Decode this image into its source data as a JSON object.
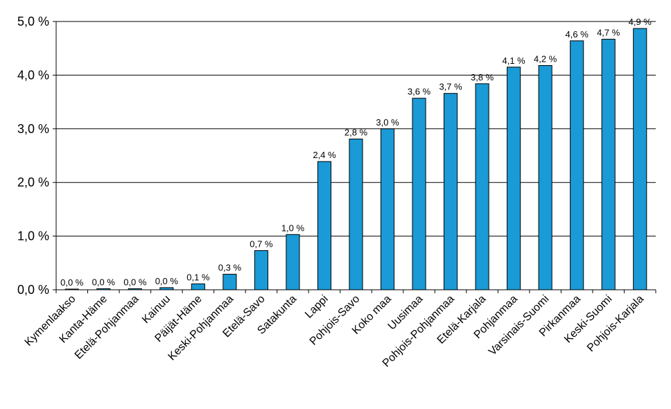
{
  "chart_data": {
    "type": "bar",
    "categories": [
      "Kymenlaakso",
      "Kanta-Häme",
      "Etelä-Pohjanmaa",
      "Kainuu",
      "Päijät-Häme",
      "Keski-Pohjanmaa",
      "Etelä-Savo",
      "Satakunta",
      "Lappi",
      "Pohjois-Savo",
      "Koko maa",
      "Uusimaa",
      "Pohjois-Pohjanmaa",
      "Etelä-Karjala",
      "Pohjanmaa",
      "Varsinais-Suomi",
      "Pirkanmaa",
      "Keski-Suomi",
      "Pohjois-Karjala"
    ],
    "values": [
      0.01,
      0.02,
      0.02,
      0.04,
      0.11,
      0.29,
      0.73,
      1.03,
      2.39,
      2.81,
      3.0,
      3.57,
      3.66,
      3.84,
      4.15,
      4.18,
      4.64,
      4.67,
      4.87
    ],
    "data_labels": [
      "0,0 %",
      "0,0 %",
      "0,0 %",
      "0,0 %",
      "0,1 %",
      "0,3 %",
      "0,7 %",
      "1,0 %",
      "2,4 %",
      "2,8 %",
      "3,0 %",
      "3,6 %",
      "3,7 %",
      "3,8 %",
      "4,1 %",
      "4,2 %",
      "4,6 %",
      "4,7 %",
      "4,9 %"
    ],
    "yticks": [
      0,
      1,
      2,
      3,
      4,
      5
    ],
    "ytick_labels": [
      "0,0 %",
      "1,0 %",
      "2,0 %",
      "3,0 %",
      "4,0 %",
      "5,0 %"
    ],
    "ylim": [
      0,
      5
    ],
    "grid": true,
    "bar_color": "#1a9ad6",
    "bar_edge_color": "#000000",
    "title": "",
    "xlabel": "",
    "ylabel": ""
  }
}
